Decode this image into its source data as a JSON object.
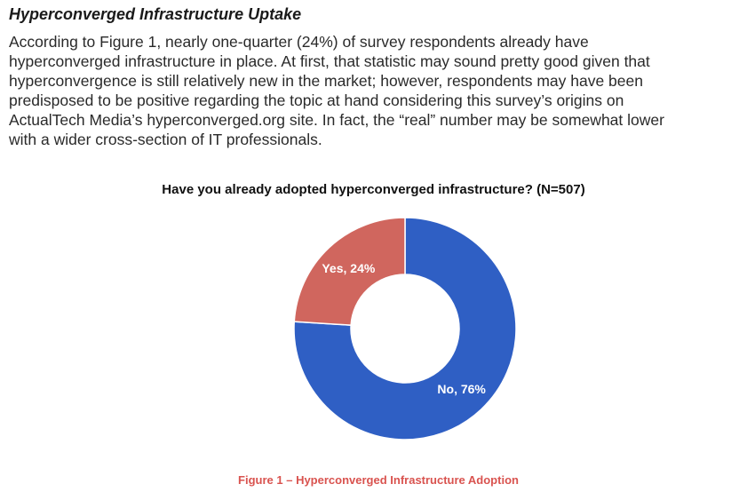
{
  "section": {
    "heading": "Hyperconverged Infrastructure Uptake",
    "paragraph_lines": [
      "According to Figure 1, nearly one-quarter (24%) of survey respondents already have",
      "hyperconverged infrastructure in place. At first, that statistic may sound pretty good given that",
      "hyperconvergence is still relatively new in the market; however, respondents may have been",
      "predisposed to be positive regarding the topic at hand considering this survey’s origins on",
      "ActualTech Media’s hyperconverged.org site. In fact, the “real” number may be somewhat lower",
      "with a wider cross-section of IT professionals."
    ]
  },
  "figure": {
    "caption": "Figure 1 – Hyperconverged Infrastructure Adoption"
  },
  "chart_data": {
    "type": "pie",
    "variant": "donut",
    "title": "Have you already adopted hyperconverged infrastructure? (N=507)",
    "slices": [
      {
        "name": "No",
        "value": 76,
        "label": "No, 76%",
        "color": "#2f5fc4"
      },
      {
        "name": "Yes",
        "value": 24,
        "label": "Yes, 24%",
        "color": "#d0665e"
      }
    ],
    "legend": "none",
    "start": "top",
    "direction": "clockwise"
  }
}
